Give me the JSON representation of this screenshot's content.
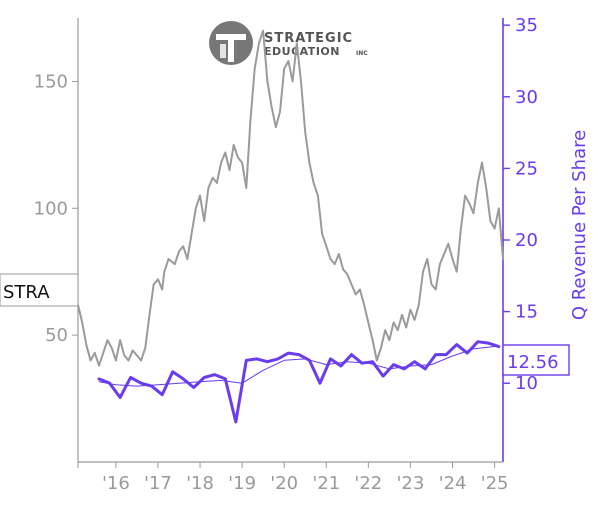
{
  "brand": {
    "line1": "STRATEGIC",
    "line2": "EDUCATION",
    "line3": "INC",
    "logo_color": "#666666"
  },
  "ticker": "STRA",
  "current_value": "12.56",
  "chart_data": {
    "type": "line",
    "title": "",
    "x_tick_labels": [
      "'16",
      "'17",
      "'18",
      "'19",
      "'20",
      "'21",
      "'22",
      "'23",
      "'24",
      "'25"
    ],
    "x_range": [
      2015.1,
      2025.2
    ],
    "y_left": {
      "label": "",
      "ylim": [
        0,
        175
      ],
      "ticks": [
        50,
        100,
        150
      ],
      "color": "#9a9a9a"
    },
    "y_right": {
      "label": "Q Revenue Per Share",
      "ylim": [
        4.5,
        35.5
      ],
      "ticks": [
        10,
        15,
        20,
        25,
        30,
        35
      ],
      "color": "#6a3cf0"
    },
    "grid": false,
    "series": [
      {
        "axis": "left",
        "color": "#9a9a9a",
        "x": [
          2015.1,
          2015.2,
          2015.3,
          2015.4,
          2015.5,
          2015.6,
          2015.8,
          2015.9,
          2016.0,
          2016.1,
          2016.2,
          2016.3,
          2016.4,
          2016.5,
          2016.6,
          2016.7,
          2016.8,
          2016.9,
          2017.0,
          2017.1,
          2017.15,
          2017.25,
          2017.4,
          2017.5,
          2017.6,
          2017.7,
          2017.8,
          2017.9,
          2018.0,
          2018.1,
          2018.2,
          2018.3,
          2018.4,
          2018.5,
          2018.6,
          2018.7,
          2018.8,
          2018.9,
          2019.0,
          2019.1,
          2019.2,
          2019.3,
          2019.4,
          2019.5,
          2019.6,
          2019.7,
          2019.8,
          2019.9,
          2020.0,
          2020.1,
          2020.2,
          2020.3,
          2020.4,
          2020.5,
          2020.6,
          2020.7,
          2020.8,
          2020.9,
          2021.0,
          2021.1,
          2021.2,
          2021.3,
          2021.4,
          2021.5,
          2021.6,
          2021.7,
          2021.8,
          2021.9,
          2022.0,
          2022.1,
          2022.2,
          2022.3,
          2022.4,
          2022.5,
          2022.6,
          2022.7,
          2022.8,
          2022.9,
          2023.0,
          2023.1,
          2023.2,
          2023.3,
          2023.4,
          2023.5,
          2023.6,
          2023.7,
          2023.8,
          2023.9,
          2024.0,
          2024.1,
          2024.2,
          2024.3,
          2024.4,
          2024.5,
          2024.6,
          2024.7,
          2024.8,
          2024.9,
          2025.0,
          2025.1,
          2025.2
        ],
        "values": [
          62,
          55,
          46,
          40,
          43,
          38,
          48,
          45,
          40,
          48,
          42,
          40,
          44,
          42,
          40,
          45,
          58,
          70,
          72,
          68,
          75,
          80,
          78,
          83,
          85,
          80,
          90,
          100,
          105,
          95,
          108,
          112,
          110,
          118,
          122,
          115,
          125,
          120,
          118,
          108,
          135,
          155,
          165,
          170,
          150,
          140,
          132,
          138,
          155,
          158,
          150,
          165,
          150,
          130,
          118,
          110,
          105,
          90,
          85,
          80,
          78,
          82,
          76,
          74,
          70,
          66,
          68,
          62,
          55,
          48,
          40,
          45,
          52,
          48,
          55,
          52,
          58,
          53,
          60,
          56,
          62,
          75,
          80,
          70,
          68,
          78,
          82,
          86,
          80,
          75,
          92,
          105,
          102,
          98,
          110,
          118,
          108,
          95,
          92,
          100,
          80
        ]
      },
      {
        "axis": "right",
        "name": "Q Revenue Per Share",
        "color": "#6a3cf0",
        "x": [
          2015.6,
          2015.85,
          2016.1,
          2016.35,
          2016.6,
          2016.85,
          2017.1,
          2017.35,
          2017.6,
          2017.85,
          2018.1,
          2018.35,
          2018.6,
          2018.85,
          2019.1,
          2019.35,
          2019.6,
          2019.85,
          2020.1,
          2020.35,
          2020.6,
          2020.85,
          2021.1,
          2021.35,
          2021.6,
          2021.85,
          2022.1,
          2022.35,
          2022.6,
          2022.85,
          2023.1,
          2023.35,
          2023.6,
          2023.85,
          2024.1,
          2024.35,
          2024.6,
          2024.85,
          2025.1
        ],
        "values": [
          10.3,
          10.0,
          9.0,
          10.4,
          10.0,
          9.8,
          9.2,
          10.8,
          10.3,
          9.7,
          10.4,
          10.6,
          10.3,
          7.3,
          11.6,
          11.7,
          11.5,
          11.7,
          12.1,
          12.0,
          11.6,
          10.0,
          11.7,
          11.2,
          12.0,
          11.4,
          11.5,
          10.5,
          11.3,
          11.0,
          11.5,
          11.0,
          12.0,
          12.0,
          12.7,
          12.1,
          12.9,
          12.8,
          12.56
        ]
      },
      {
        "axis": "right",
        "color": "#6a3cf0",
        "x": [
          2015.6,
          2016.0,
          2016.5,
          2017.0,
          2017.5,
          2018.0,
          2018.5,
          2019.0,
          2019.5,
          2020.0,
          2020.5,
          2021.0,
          2021.5,
          2022.0,
          2022.5,
          2023.0,
          2023.5,
          2024.0,
          2024.5,
          2025.1
        ],
        "values": [
          10.1,
          9.9,
          9.8,
          9.9,
          10.0,
          10.1,
          10.2,
          10.0,
          10.9,
          11.6,
          11.7,
          11.3,
          11.5,
          11.4,
          11.0,
          11.2,
          11.3,
          11.9,
          12.4,
          12.6
        ]
      }
    ]
  }
}
